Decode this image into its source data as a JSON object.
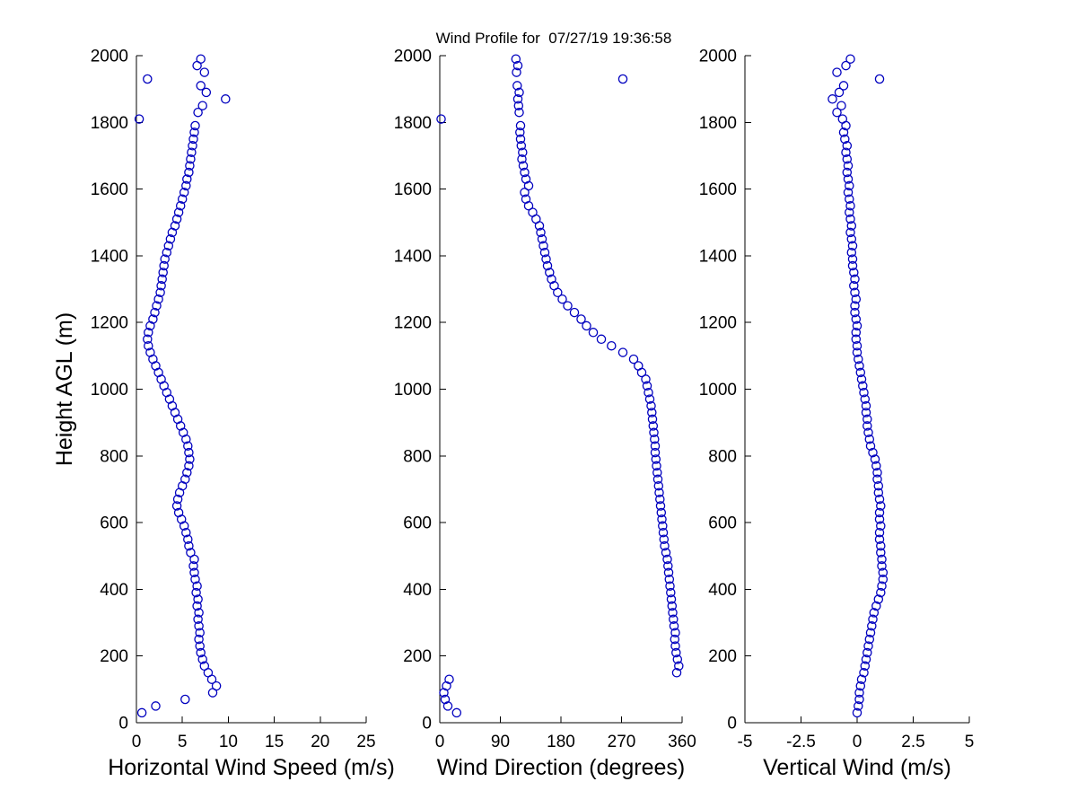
{
  "colors": {
    "background": "#ffffff",
    "axis": "#000000",
    "text": "#000000",
    "marker": "#0000bf"
  },
  "chart_data": {
    "type": "scatter",
    "title": "Wind Profile for  07/27/19 19:36:58",
    "ylim": [
      0,
      2000
    ],
    "yticks": [
      0,
      200,
      400,
      600,
      800,
      1000,
      1200,
      1400,
      1600,
      1800,
      2000
    ],
    "marker": {
      "shape": "circle",
      "color": "#0000bf",
      "size": 4.6
    },
    "heights": [
      30,
      50,
      70,
      90,
      110,
      130,
      150,
      170,
      190,
      210,
      230,
      250,
      270,
      290,
      310,
      330,
      350,
      370,
      390,
      410,
      430,
      450,
      470,
      490,
      510,
      530,
      550,
      570,
      590,
      610,
      630,
      650,
      670,
      690,
      710,
      730,
      750,
      770,
      790,
      810,
      830,
      850,
      870,
      890,
      910,
      930,
      950,
      970,
      990,
      1010,
      1030,
      1050,
      1070,
      1090,
      1110,
      1130,
      1150,
      1170,
      1190,
      1210,
      1230,
      1250,
      1270,
      1290,
      1310,
      1330,
      1350,
      1370,
      1390,
      1410,
      1430,
      1450,
      1470,
      1490,
      1510,
      1530,
      1550,
      1570,
      1590,
      1610,
      1630,
      1650,
      1670,
      1690,
      1710,
      1730,
      1750,
      1770,
      1790,
      1810,
      1830,
      1850,
      1870,
      1890,
      1910,
      1930,
      1950,
      1970,
      1990
    ],
    "panels": [
      {
        "id": "horizontal-wind-speed",
        "xlabel": "Horizontal Wind Speed (m/s)",
        "ylabel": "Height AGL (m)",
        "xlim": [
          0,
          25
        ],
        "xticks": [
          0,
          5,
          10,
          15,
          20,
          25
        ],
        "values": [
          0.6,
          2.1,
          5.3,
          8.3,
          8.7,
          8.2,
          7.8,
          7.4,
          7.2,
          7.0,
          6.9,
          6.8,
          6.9,
          6.8,
          6.7,
          6.8,
          6.6,
          6.7,
          6.5,
          6.6,
          6.4,
          6.3,
          6.2,
          6.3,
          5.9,
          5.7,
          5.6,
          5.4,
          5.2,
          4.9,
          4.6,
          4.4,
          4.5,
          4.7,
          5.0,
          5.3,
          5.5,
          5.7,
          5.8,
          5.7,
          5.6,
          5.4,
          5.1,
          4.8,
          4.5,
          4.2,
          3.9,
          3.6,
          3.3,
          3.0,
          2.7,
          2.4,
          2.1,
          1.8,
          1.5,
          1.3,
          1.2,
          1.3,
          1.5,
          1.8,
          2.0,
          2.2,
          2.4,
          2.6,
          2.7,
          2.8,
          2.9,
          3.0,
          3.1,
          3.3,
          3.5,
          3.7,
          3.9,
          4.2,
          4.4,
          4.6,
          4.8,
          5.0,
          5.2,
          5.4,
          5.5,
          5.7,
          5.8,
          5.9,
          6.0,
          6.1,
          6.2,
          6.3,
          6.4,
          0.3,
          6.7,
          7.2,
          9.7,
          7.6,
          7.0,
          1.2,
          7.4,
          6.6,
          7.0
        ]
      },
      {
        "id": "wind-direction",
        "xlabel": "Wind Direction (degrees)",
        "ylabel": "",
        "xlim": [
          0,
          360
        ],
        "xticks": [
          0,
          90,
          180,
          270,
          360
        ],
        "values": [
          25,
          12,
          8,
          6,
          10,
          14,
          352,
          355,
          353,
          351,
          350,
          349,
          350,
          348,
          347,
          346,
          345,
          344,
          343,
          342,
          341,
          340,
          339,
          338,
          336,
          334,
          333,
          332,
          331,
          330,
          329,
          328,
          327,
          326,
          325,
          324,
          323,
          322,
          321,
          320,
          320,
          319,
          318,
          317,
          316,
          315,
          314,
          312,
          310,
          308,
          306,
          300,
          295,
          288,
          272,
          255,
          240,
          228,
          218,
          210,
          200,
          190,
          182,
          175,
          170,
          166,
          163,
          160,
          158,
          156,
          154,
          152,
          150,
          148,
          143,
          138,
          132,
          128,
          126,
          132,
          128,
          126,
          124,
          122,
          123,
          121,
          120,
          119,
          120,
          2,
          118,
          117,
          116,
          118,
          115,
          272,
          114,
          116,
          113
        ]
      },
      {
        "id": "vertical-wind",
        "xlabel": "Vertical Wind (m/s)",
        "ylabel": "",
        "xlim": [
          -5,
          5
        ],
        "xticks": [
          -5,
          -2.5,
          0,
          2.5,
          5
        ],
        "values": [
          0.0,
          0.05,
          0.1,
          0.1,
          0.15,
          0.2,
          0.3,
          0.35,
          0.4,
          0.45,
          0.5,
          0.55,
          0.6,
          0.65,
          0.7,
          0.75,
          0.85,
          0.95,
          1.05,
          1.1,
          1.15,
          1.15,
          1.1,
          1.1,
          1.05,
          1.05,
          1.0,
          1.0,
          1.05,
          1.0,
          1.0,
          1.05,
          1.0,
          0.95,
          0.95,
          0.9,
          0.9,
          0.85,
          0.8,
          0.7,
          0.6,
          0.55,
          0.5,
          0.45,
          0.45,
          0.4,
          0.4,
          0.35,
          0.3,
          0.25,
          0.2,
          0.15,
          0.1,
          0.05,
          0.0,
          0.0,
          -0.05,
          -0.05,
          0.0,
          -0.05,
          -0.1,
          -0.1,
          -0.05,
          -0.1,
          -0.15,
          -0.1,
          -0.15,
          -0.2,
          -0.2,
          -0.25,
          -0.2,
          -0.25,
          -0.3,
          -0.25,
          -0.3,
          -0.35,
          -0.3,
          -0.35,
          -0.4,
          -0.35,
          -0.4,
          -0.45,
          -0.4,
          -0.45,
          -0.5,
          -0.45,
          -0.55,
          -0.6,
          -0.5,
          -0.65,
          -0.9,
          -0.7,
          -1.1,
          -0.8,
          -0.6,
          1.0,
          -0.9,
          -0.5,
          -0.3
        ]
      }
    ]
  }
}
